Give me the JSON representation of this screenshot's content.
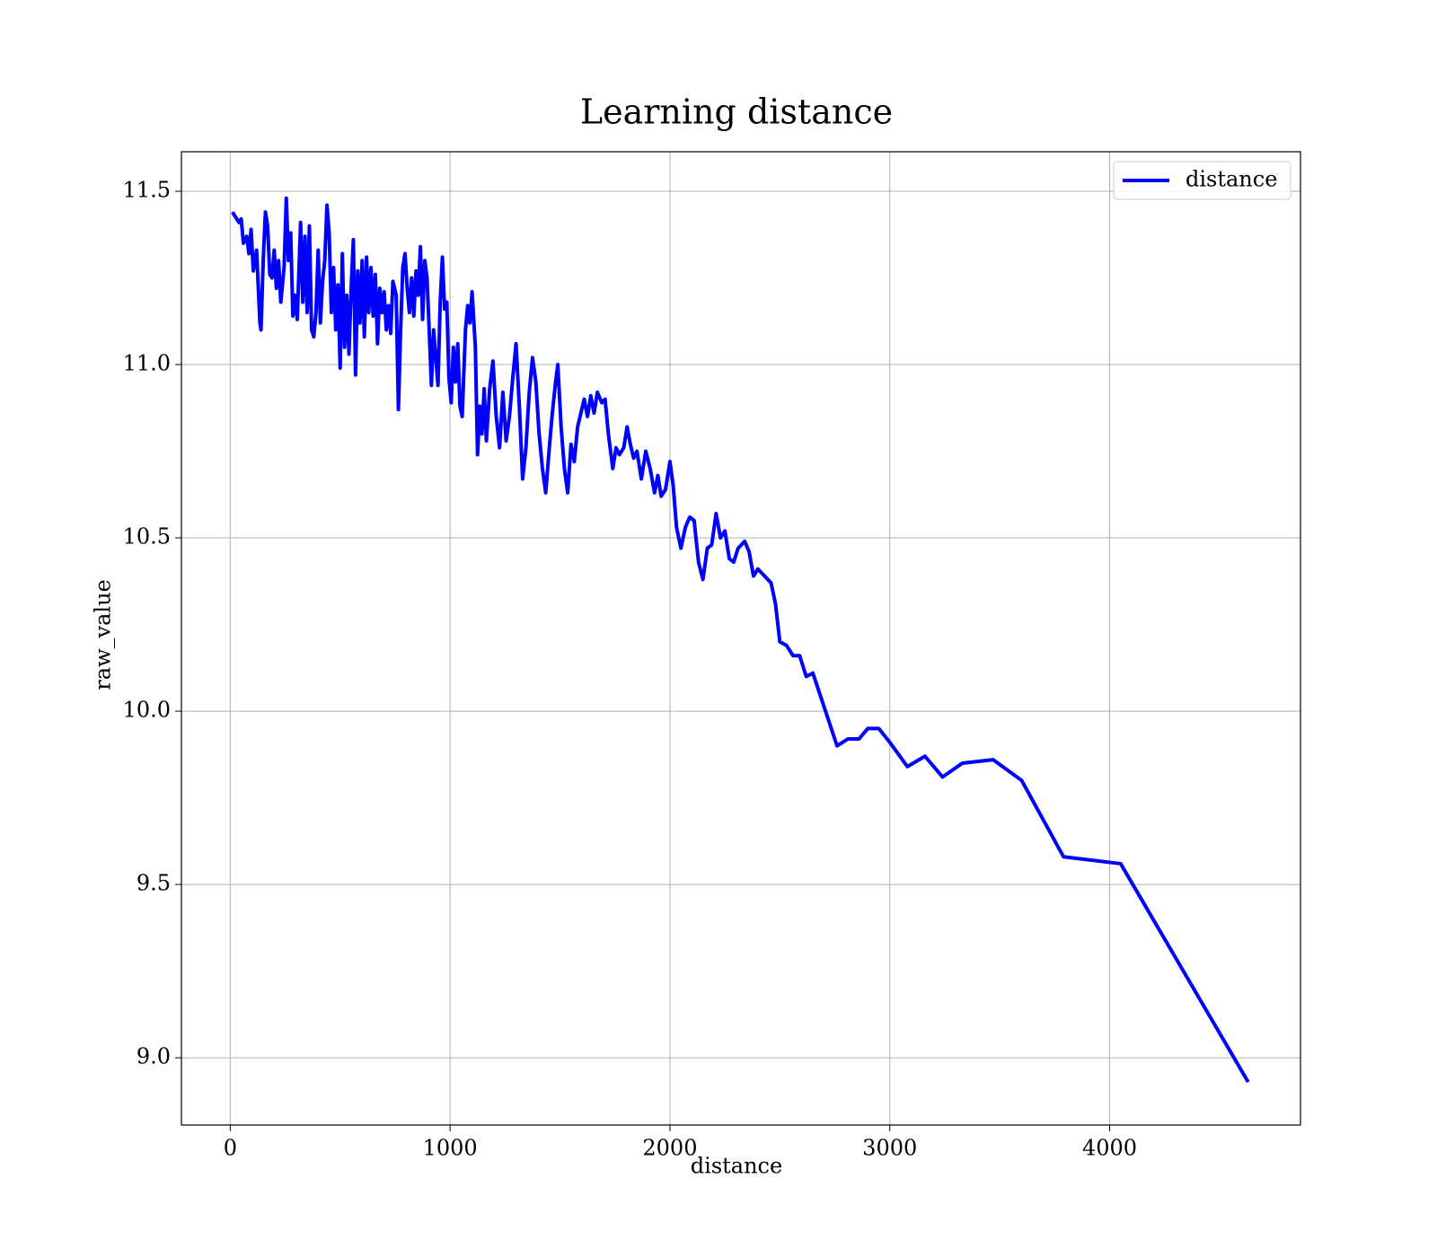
{
  "chart_data": {
    "type": "line",
    "title": "Learning distance",
    "x_label": "distance",
    "y_label": "raw_value",
    "xlim": [
      -222,
      4868
    ],
    "ylim": [
      8.806,
      11.614
    ],
    "xticks": [
      0,
      1000,
      2000,
      3000,
      4000
    ],
    "yticks": [
      {
        "value": 9,
        "label": "9.0"
      },
      9.5,
      {
        "value": 10,
        "label": "10.0"
      },
      10.5,
      {
        "value": 11,
        "label": "11.0"
      },
      11.5
    ],
    "grid": true,
    "legend": "upper right",
    "x": [
      10,
      40,
      50,
      60,
      75,
      85,
      95,
      105,
      120,
      135,
      140,
      150,
      160,
      170,
      180,
      190,
      200,
      210,
      220,
      230,
      245,
      255,
      265,
      275,
      285,
      295,
      305,
      320,
      330,
      340,
      350,
      360,
      370,
      380,
      390,
      400,
      410,
      420,
      430,
      440,
      450,
      460,
      470,
      480,
      490,
      500,
      510,
      520,
      530,
      540,
      550,
      560,
      570,
      580,
      590,
      600,
      610,
      620,
      630,
      640,
      650,
      660,
      670,
      680,
      690,
      700,
      710,
      720,
      730,
      740,
      755,
      765,
      775,
      785,
      795,
      805,
      815,
      825,
      835,
      845,
      855,
      865,
      875,
      885,
      895,
      905,
      915,
      925,
      935,
      945,
      955,
      965,
      975,
      985,
      995,
      1005,
      1015,
      1025,
      1035,
      1045,
      1055,
      1070,
      1080,
      1090,
      1100,
      1115,
      1125,
      1135,
      1145,
      1155,
      1165,
      1180,
      1195,
      1210,
      1225,
      1240,
      1255,
      1270,
      1285,
      1300,
      1315,
      1330,
      1345,
      1360,
      1375,
      1390,
      1405,
      1420,
      1435,
      1450,
      1465,
      1480,
      1490,
      1505,
      1520,
      1535,
      1550,
      1565,
      1580,
      1595,
      1610,
      1625,
      1640,
      1655,
      1670,
      1690,
      1705,
      1720,
      1740,
      1755,
      1770,
      1790,
      1805,
      1820,
      1835,
      1850,
      1870,
      1890,
      1910,
      1930,
      1945,
      1960,
      1980,
      2000,
      2015,
      2030,
      2050,
      2070,
      2090,
      2110,
      2130,
      2150,
      2170,
      2190,
      2210,
      2230,
      2250,
      2270,
      2290,
      2310,
      2340,
      2360,
      2380,
      2400,
      2430,
      2460,
      2480,
      2500,
      2530,
      2560,
      2590,
      2620,
      2650,
      2760,
      2810,
      2860,
      2900,
      2950,
      3000,
      3080,
      3160,
      3240,
      3330,
      3470,
      3600,
      3790,
      4050,
      4630
    ],
    "series": [
      {
        "name": "distance",
        "color": "#0000ff",
        "values": [
          11.44,
          11.41,
          11.42,
          11.35,
          11.37,
          11.32,
          11.39,
          11.27,
          11.33,
          11.12,
          11.1,
          11.3,
          11.44,
          11.4,
          11.26,
          11.25,
          11.33,
          11.22,
          11.3,
          11.18,
          11.28,
          11.48,
          11.3,
          11.38,
          11.14,
          11.2,
          11.13,
          11.41,
          11.18,
          11.37,
          11.15,
          11.4,
          11.1,
          11.08,
          11.15,
          11.33,
          11.12,
          11.24,
          11.3,
          11.46,
          11.38,
          11.15,
          11.28,
          11.1,
          11.23,
          10.99,
          11.32,
          11.05,
          11.2,
          11.03,
          11.22,
          11.36,
          10.97,
          11.27,
          11.12,
          11.3,
          11.08,
          11.31,
          11.15,
          11.28,
          11.14,
          11.26,
          11.06,
          11.22,
          11.15,
          11.21,
          11.1,
          11.17,
          11.09,
          11.24,
          11.2,
          10.87,
          11.1,
          11.28,
          11.32,
          11.22,
          11.15,
          11.25,
          11.14,
          11.27,
          11.2,
          11.34,
          11.13,
          11.3,
          11.25,
          11.1,
          10.94,
          11.1,
          11.02,
          10.94,
          11.18,
          11.31,
          11.16,
          11.18,
          10.96,
          10.89,
          11.05,
          10.95,
          11.06,
          10.88,
          10.85,
          11.1,
          11.17,
          11.12,
          11.21,
          11.05,
          10.74,
          10.88,
          10.8,
          10.93,
          10.78,
          10.93,
          11.01,
          10.85,
          10.76,
          10.92,
          10.78,
          10.85,
          10.96,
          11.06,
          10.88,
          10.67,
          10.76,
          10.92,
          11.02,
          10.95,
          10.8,
          10.7,
          10.63,
          10.75,
          10.86,
          10.95,
          11.0,
          10.82,
          10.7,
          10.63,
          10.77,
          10.72,
          10.82,
          10.86,
          10.9,
          10.85,
          10.91,
          10.86,
          10.92,
          10.89,
          10.9,
          10.8,
          10.7,
          10.76,
          10.74,
          10.76,
          10.82,
          10.77,
          10.73,
          10.75,
          10.67,
          10.75,
          10.7,
          10.63,
          10.68,
          10.62,
          10.64,
          10.72,
          10.65,
          10.53,
          10.47,
          10.53,
          10.56,
          10.55,
          10.43,
          10.38,
          10.47,
          10.48,
          10.57,
          10.5,
          10.52,
          10.44,
          10.43,
          10.47,
          10.49,
          10.46,
          10.39,
          10.41,
          10.39,
          10.37,
          10.31,
          10.2,
          10.19,
          10.16,
          10.16,
          10.1,
          10.11,
          9.9,
          9.92,
          9.92,
          9.95,
          9.95,
          9.91,
          9.84,
          9.87,
          9.81,
          9.85,
          9.86,
          9.8,
          9.58,
          9.56,
          8.93
        ]
      }
    ]
  }
}
